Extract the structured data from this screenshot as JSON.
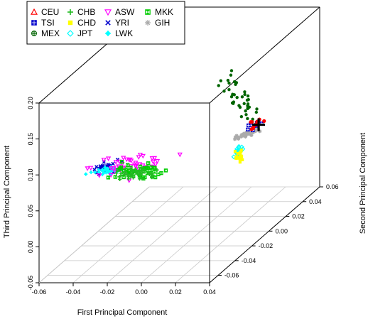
{
  "chart_data": {
    "type": "scatter3d",
    "xlabel": "First Principal Component",
    "ylabel": "Second Principal Component",
    "zlabel": "Third Principal Component",
    "xlim": [
      -0.06,
      0.04
    ],
    "ylim": [
      -0.07,
      0.06
    ],
    "zlim": [
      -0.05,
      0.2
    ],
    "x_ticks": [
      "-0.06",
      "-0.04",
      "-0.02",
      "0.00",
      "0.02",
      "0.04"
    ],
    "y_ticks": [
      "-0.06",
      "-0.04",
      "-0.02",
      "0.00",
      "0.02",
      "0.04",
      "0.06"
    ],
    "z_ticks": [
      "-0.05",
      "0.00",
      "0.05",
      "0.10",
      "0.15",
      "0.20"
    ],
    "grid": true,
    "legend_position": "top-left",
    "legend": [
      {
        "name": "CEU",
        "color": "#ff0000",
        "marker": "triangle-up-open"
      },
      {
        "name": "TSI",
        "color": "#0000cc",
        "marker": "square-plus"
      },
      {
        "name": "MEX",
        "color": "#006400",
        "marker": "circle-plus"
      },
      {
        "name": "CHB",
        "color": "#22bb22",
        "marker": "plus"
      },
      {
        "name": "CHD",
        "color": "#ffff00",
        "marker": "square-filled"
      },
      {
        "name": "JPT",
        "color": "#00ffff",
        "marker": "diamond-open"
      },
      {
        "name": "ASW",
        "color": "#ff00ff",
        "marker": "triangle-down-open"
      },
      {
        "name": "YRI",
        "color": "#0000cc",
        "marker": "x"
      },
      {
        "name": "LWK",
        "color": "#00ffff",
        "marker": "diamond-plus"
      },
      {
        "name": "MKK",
        "color": "#00cc00",
        "marker": "hourglass"
      },
      {
        "name": "GIH",
        "color": "#aaaaaa",
        "marker": "asterisk"
      }
    ],
    "series": [
      {
        "name": "CEU",
        "center": [
          0.033,
          0.0,
          0.1
        ],
        "spread": [
          0.002,
          0.003,
          0.003
        ],
        "n": 12
      },
      {
        "name": "TSI",
        "center": [
          0.033,
          -0.005,
          0.1
        ],
        "spread": [
          0.002,
          0.003,
          0.003
        ],
        "n": 10
      },
      {
        "name": "MEX",
        "center": [
          0.02,
          0.005,
          0.13
        ],
        "spread": [
          0.005,
          0.004,
          0.01
        ],
        "n": 40
      },
      {
        "name": "CHB",
        "center": [
          -0.02,
          -0.035,
          0.065
        ],
        "spread": [
          0.006,
          0.003,
          0.003
        ],
        "n": 45
      },
      {
        "name": "CHD",
        "center": [
          0.003,
          0.038,
          0.015
        ],
        "spread": [
          0.001,
          0.002,
          0.004
        ],
        "n": 20
      },
      {
        "name": "JPT",
        "center": [
          0.003,
          0.038,
          0.02
        ],
        "spread": [
          0.001,
          0.002,
          0.003
        ],
        "n": 18
      },
      {
        "name": "ASW",
        "center": [
          -0.035,
          -0.015,
          0.06
        ],
        "spread": [
          0.01,
          0.008,
          0.004
        ],
        "n": 45
      },
      {
        "name": "YRI",
        "center": [
          -0.045,
          -0.02,
          0.06
        ],
        "spread": [
          0.003,
          0.003,
          0.002
        ],
        "n": 30
      },
      {
        "name": "LWK",
        "center": [
          -0.042,
          -0.025,
          0.06
        ],
        "spread": [
          0.004,
          0.003,
          0.002
        ],
        "n": 30
      },
      {
        "name": "MKK",
        "center": [
          -0.025,
          -0.025,
          0.06
        ],
        "spread": [
          0.008,
          0.005,
          0.003
        ],
        "n": 45
      },
      {
        "name": "GIH",
        "center": [
          0.025,
          0.005,
          0.08
        ],
        "spread": [
          0.003,
          0.004,
          0.002
        ],
        "n": 35
      }
    ],
    "highlight": {
      "marker": "big-black-plus",
      "point": [
        0.035,
        -0.002,
        0.1
      ]
    }
  }
}
